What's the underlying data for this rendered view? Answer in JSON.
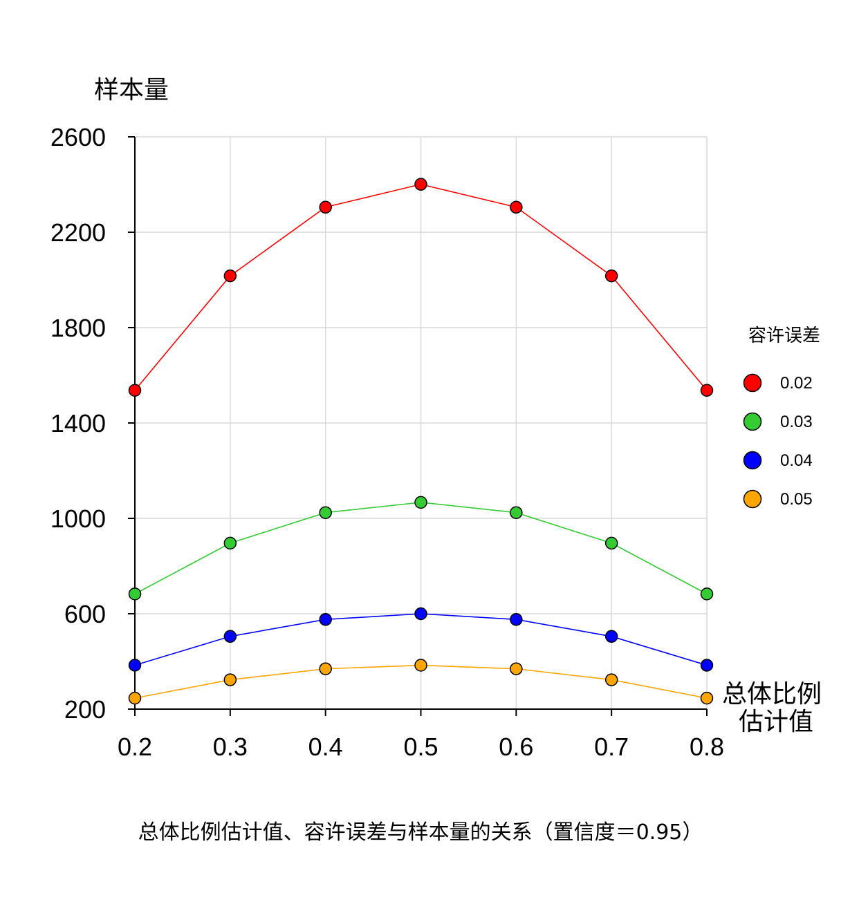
{
  "chart_data": {
    "type": "line",
    "title": "总体比例估计值、容许误差与样本量的关系（置信度＝0.95）",
    "xlabel_line1": "总体比例",
    "xlabel_line2": "估计值",
    "ylabel": "样本量",
    "legend_title": "容许误差",
    "x": [
      0.2,
      0.3,
      0.4,
      0.5,
      0.6,
      0.7,
      0.8
    ],
    "x_tick_labels": [
      "0.2",
      "0.3",
      "0.4",
      "0.5",
      "0.6",
      "0.7",
      "0.8"
    ],
    "y_ticks": [
      200,
      600,
      1000,
      1400,
      1800,
      2200,
      2600
    ],
    "y_tick_labels": [
      "200",
      "600",
      "1000",
      "1400",
      "1800",
      "2200",
      "2600"
    ],
    "xlim": [
      0.2,
      0.8
    ],
    "ylim": [
      200,
      2600
    ],
    "grid": true,
    "legend_position": "right",
    "series": [
      {
        "name": "0.02",
        "color": "#ff0000",
        "values": [
          1537,
          2017,
          2305,
          2401,
          2305,
          2017,
          1537
        ]
      },
      {
        "name": "0.03",
        "color": "#33cc33",
        "values": [
          683,
          896,
          1024,
          1067,
          1024,
          896,
          683
        ]
      },
      {
        "name": "0.04",
        "color": "#0000ff",
        "values": [
          384,
          505,
          576,
          600,
          576,
          505,
          384
        ]
      },
      {
        "name": "0.05",
        "color": "#ffa500",
        "values": [
          246,
          323,
          369,
          384,
          369,
          323,
          246
        ]
      }
    ]
  }
}
